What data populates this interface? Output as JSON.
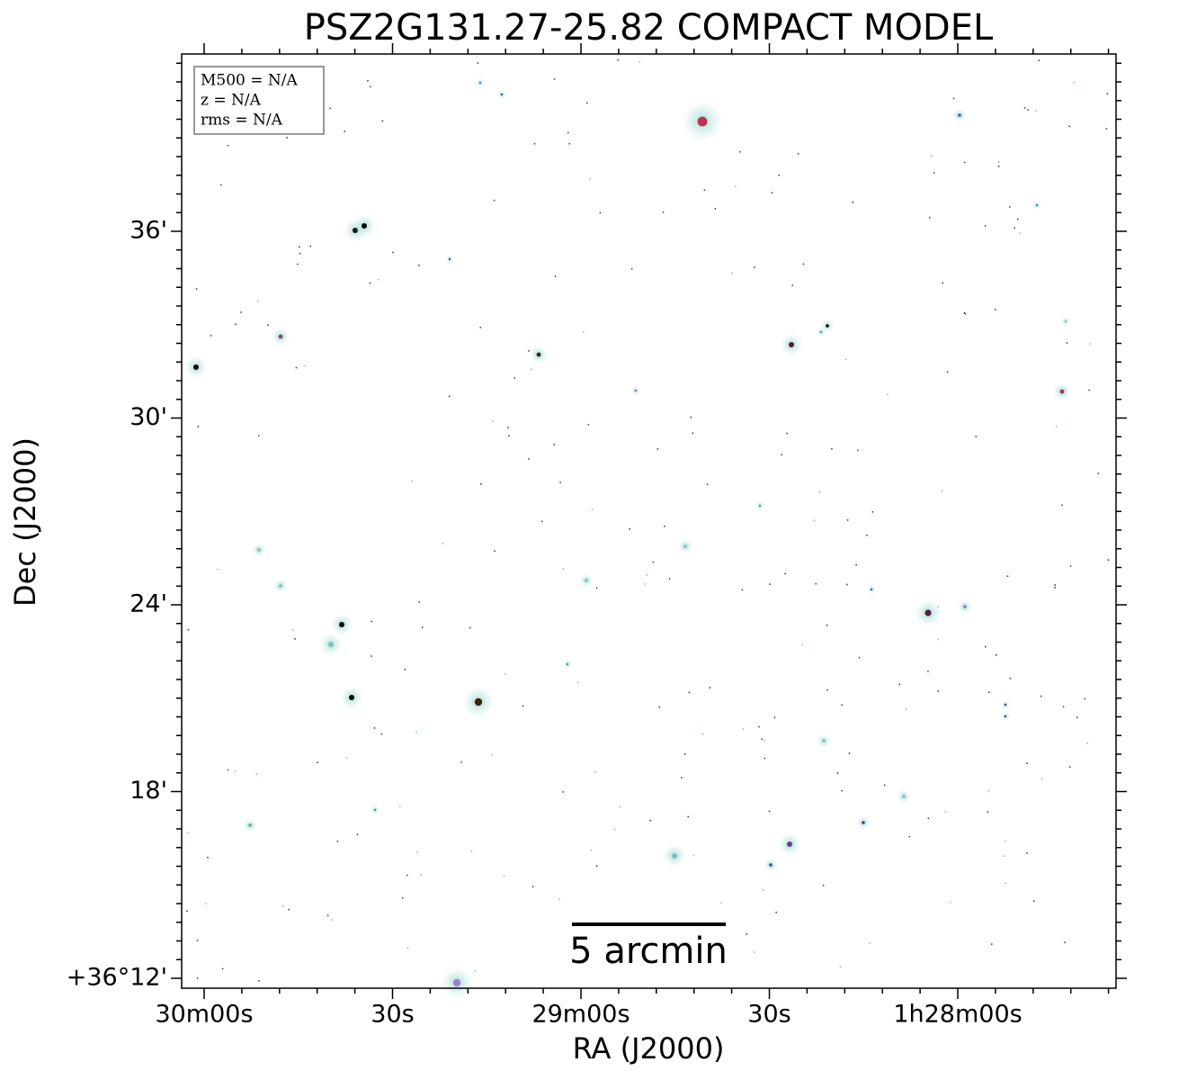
{
  "title": "PSZ2G131.27-25.82 COMPACT MODEL",
  "info_box": [
    "M500 = N/A",
    "z = N/A",
    "rms = N/A"
  ],
  "x_axis": {
    "label": "RA (J2000)",
    "ticks": [
      "30m00s",
      "30s",
      "29m00s",
      "30s",
      "1h28m00s"
    ]
  },
  "y_axis": {
    "label": "Dec (J2000)",
    "ticks": [
      "36'",
      "30'",
      "24'",
      "18'",
      "+36°12'"
    ]
  },
  "scale_bar": "5 arcmin"
}
